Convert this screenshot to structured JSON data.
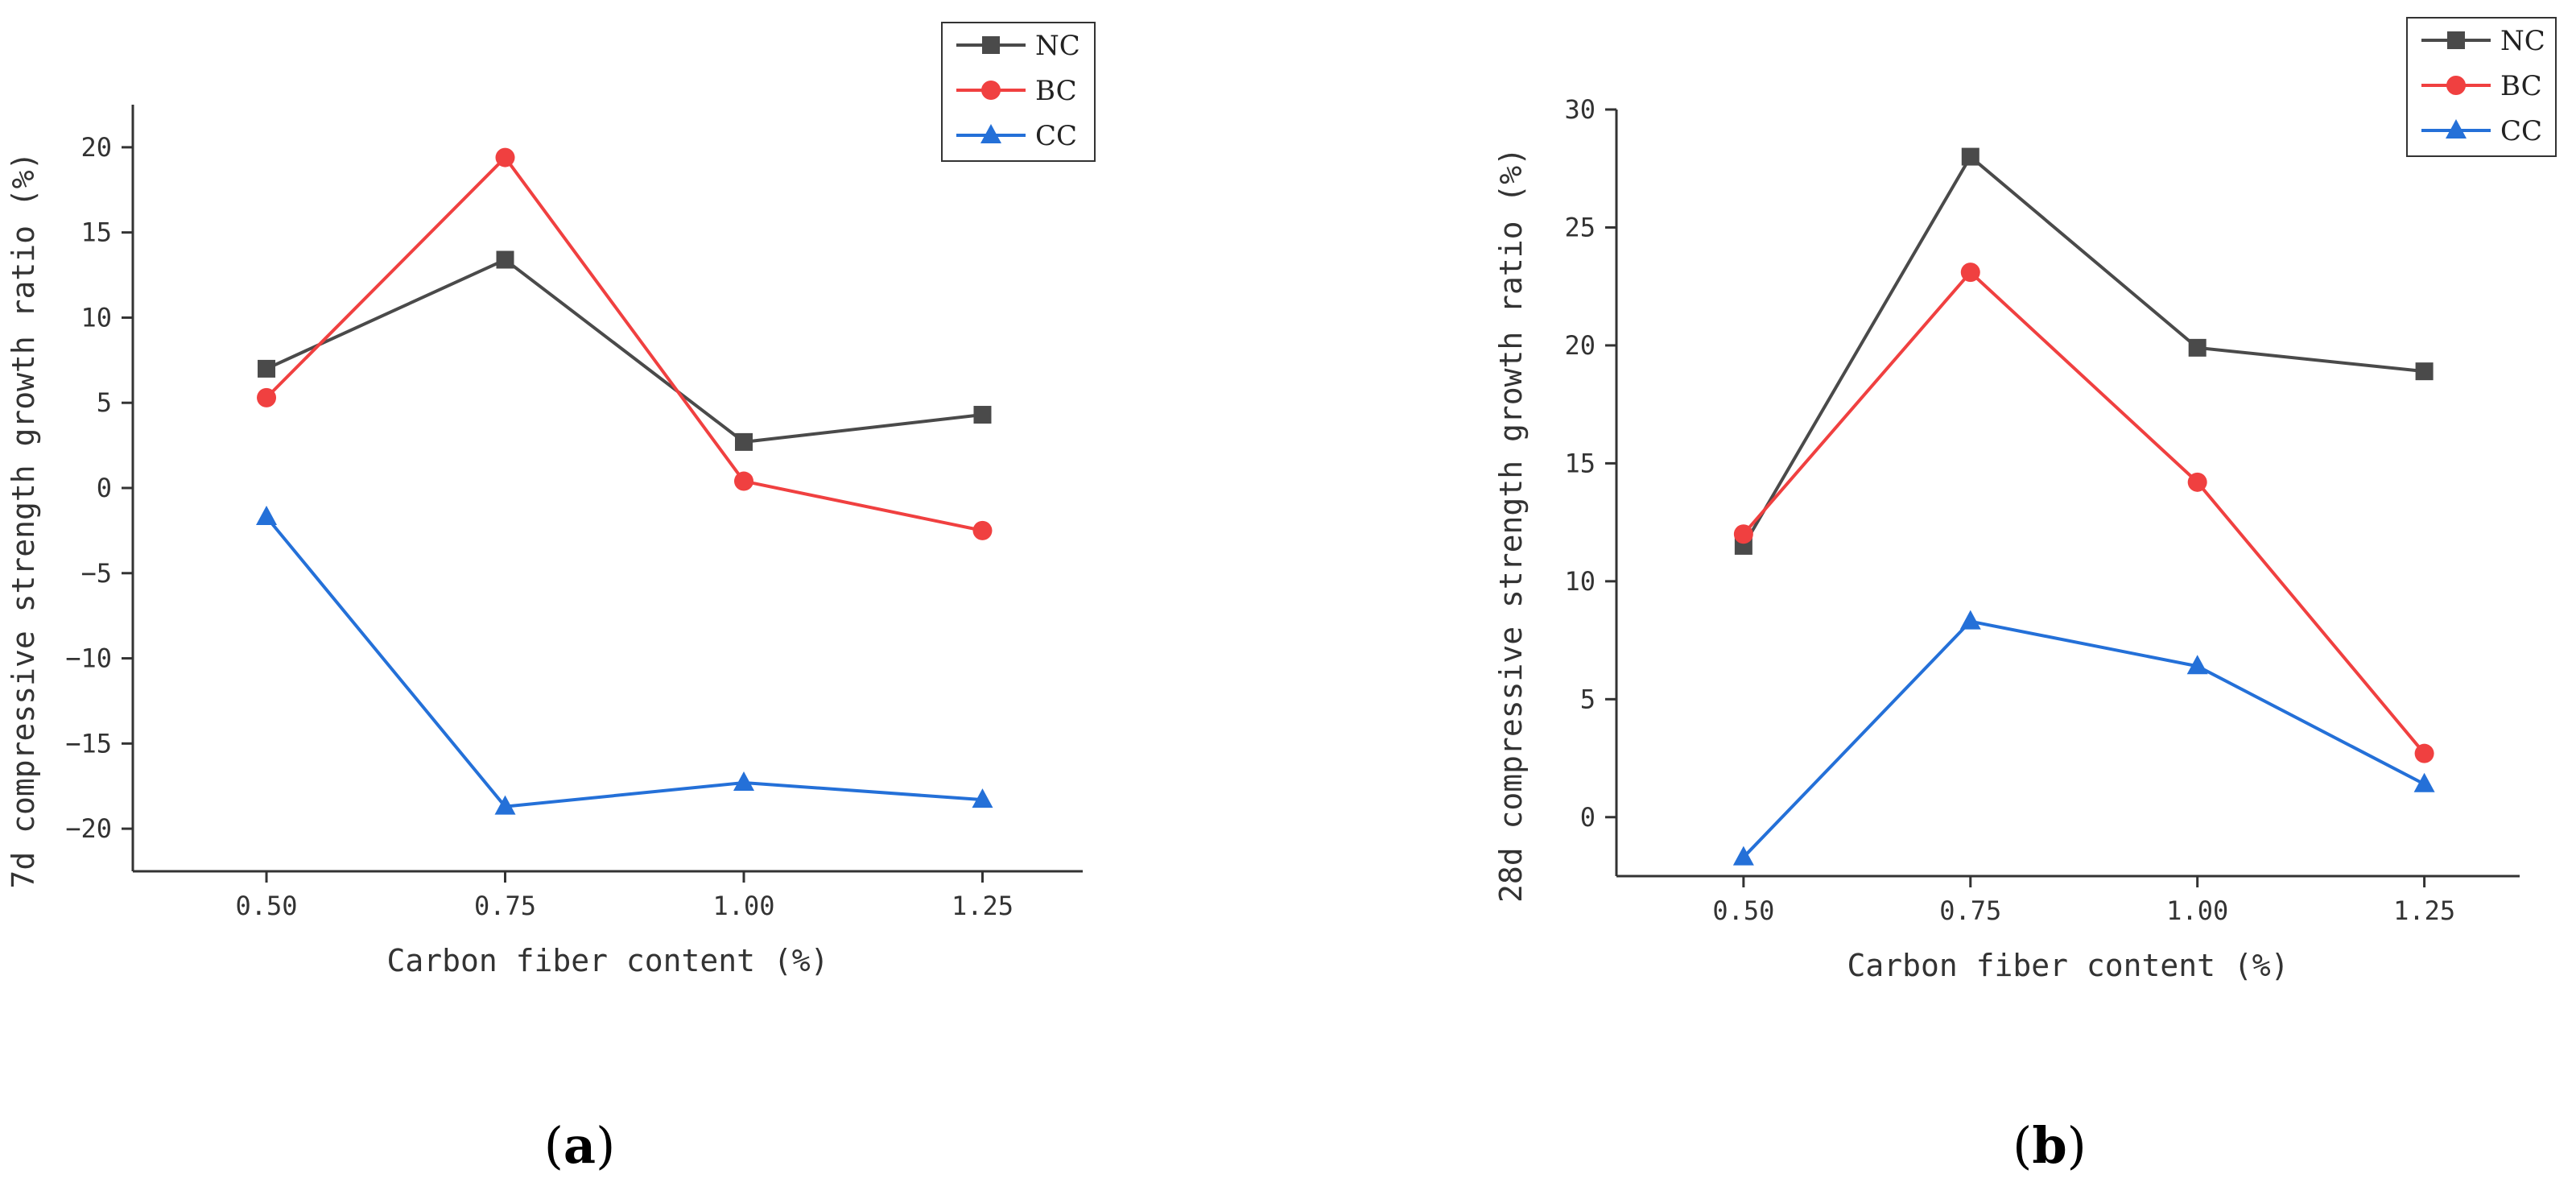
{
  "figure": {
    "panels": [
      {
        "id": "a",
        "caption_open": "(",
        "caption_letter": "a",
        "caption_close": ")"
      },
      {
        "id": "b",
        "caption_open": "(",
        "caption_letter": "b",
        "caption_close": ")"
      }
    ]
  },
  "chart_data": [
    {
      "type": "line",
      "title": "",
      "xlabel": "Carbon fiber content (%)",
      "ylabel": "7d compressive strength growth ratio (%)",
      "x": [
        0.5,
        0.75,
        1.0,
        1.25
      ],
      "x_tick_labels": [
        "0.50",
        "0.75",
        "1.00",
        "1.25"
      ],
      "xlim": [
        0.36,
        1.355
      ],
      "ylim": [
        -22.5,
        22.5
      ],
      "yticks": [
        -20,
        -15,
        -10,
        -5,
        0,
        5,
        10,
        15,
        20
      ],
      "y_tick_labels": [
        "−20",
        "−15",
        "−10",
        "−5",
        "0",
        "5",
        "10",
        "15",
        "20"
      ],
      "grid": false,
      "legend_position": "top-right",
      "series": [
        {
          "name": "NC",
          "color": "#4a4a4a",
          "marker": "square",
          "values": [
            7.0,
            13.4,
            2.7,
            4.3
          ]
        },
        {
          "name": "BC",
          "color": "#f04040",
          "marker": "circle",
          "values": [
            5.3,
            19.4,
            0.4,
            -2.5
          ]
        },
        {
          "name": "CC",
          "color": "#2470d8",
          "marker": "triangle",
          "values": [
            -1.7,
            -18.7,
            -17.3,
            -18.3
          ]
        }
      ]
    },
    {
      "type": "line",
      "title": "",
      "xlabel": "Carbon fiber content (%)",
      "ylabel": "28d compressive strength growth ratio (%)",
      "x": [
        0.5,
        0.75,
        1.0,
        1.25
      ],
      "x_tick_labels": [
        "0.50",
        "0.75",
        "1.00",
        "1.25"
      ],
      "xlim": [
        0.36,
        1.355
      ],
      "ylim": [
        -2.5,
        30
      ],
      "yticks": [
        0,
        5,
        10,
        15,
        20,
        25,
        30
      ],
      "y_tick_labels": [
        "0",
        "5",
        "10",
        "15",
        "20",
        "25",
        "30"
      ],
      "grid": false,
      "legend_position": "top-right",
      "series": [
        {
          "name": "NC",
          "color": "#4a4a4a",
          "marker": "square",
          "values": [
            11.5,
            28.0,
            19.9,
            18.9
          ]
        },
        {
          "name": "BC",
          "color": "#f04040",
          "marker": "circle",
          "values": [
            12.0,
            23.1,
            14.2,
            2.7
          ]
        },
        {
          "name": "CC",
          "color": "#2470d8",
          "marker": "triangle",
          "values": [
            -1.7,
            8.3,
            6.4,
            1.4
          ]
        }
      ]
    }
  ]
}
